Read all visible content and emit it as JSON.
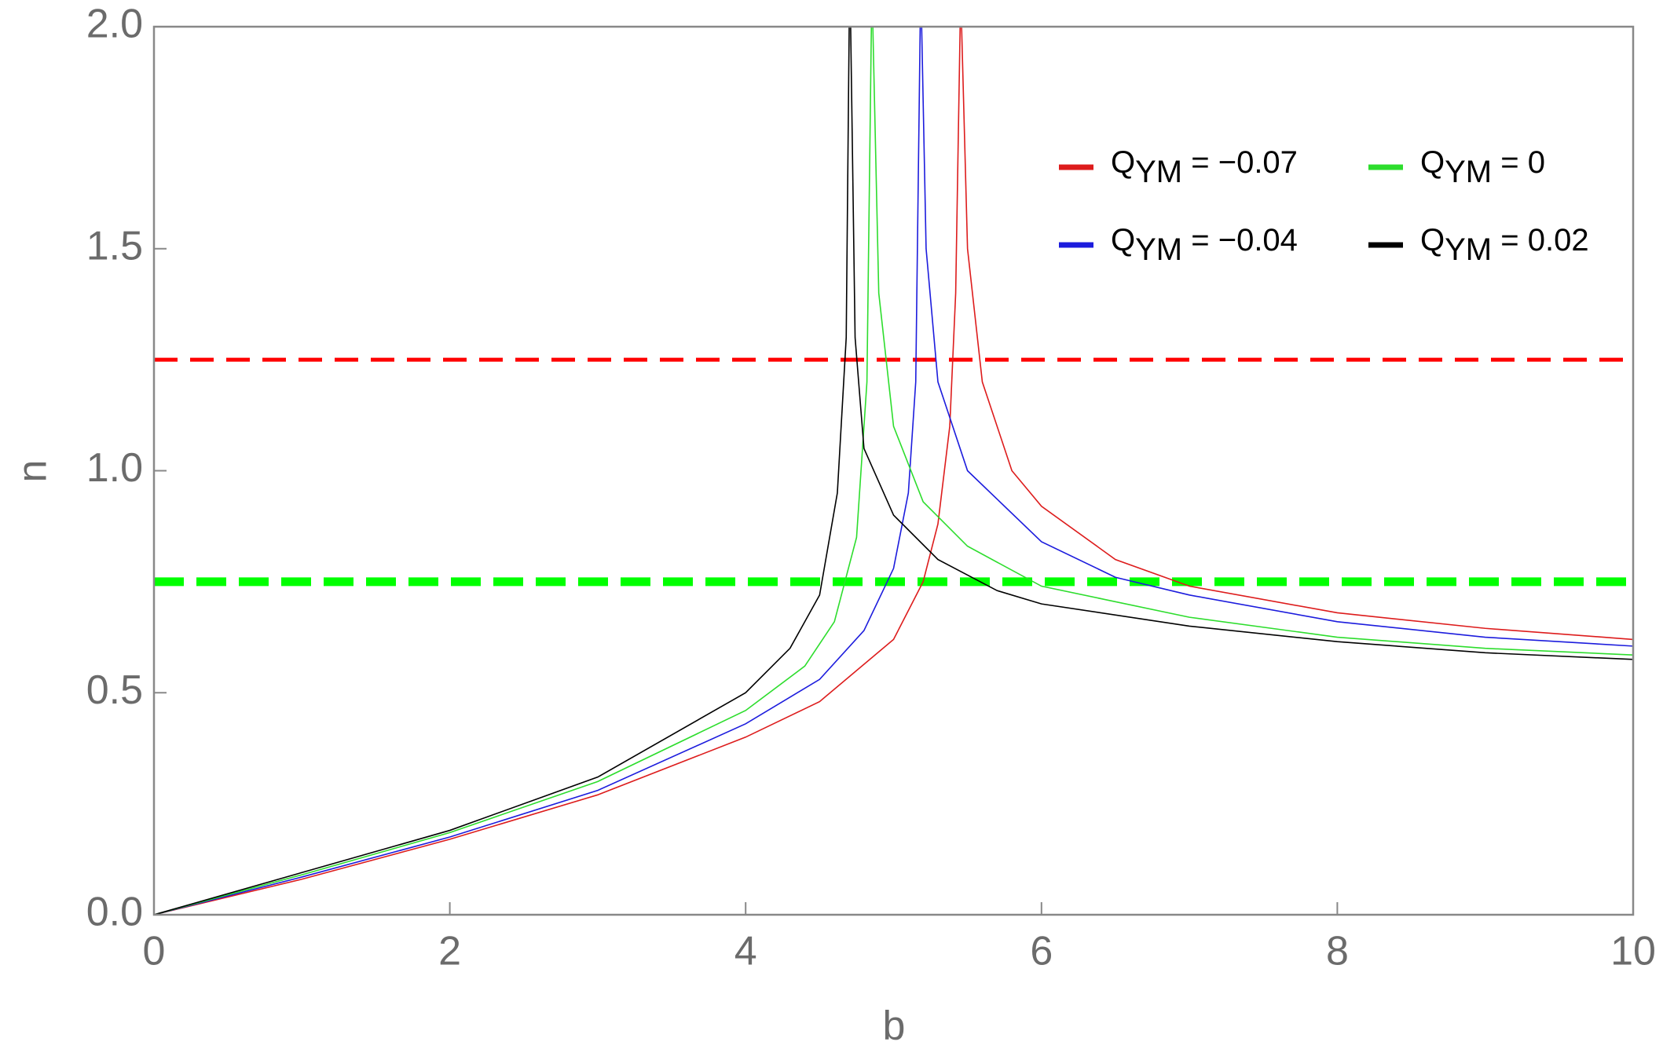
{
  "chart_data": {
    "type": "line",
    "xlabel": "b",
    "ylabel": "n",
    "xlim": [
      0,
      10
    ],
    "ylim": [
      0,
      2
    ],
    "xticks": [
      0,
      2,
      4,
      6,
      8,
      10
    ],
    "yticks": [
      {
        "value": 0,
        "label": "0.0"
      },
      0.5,
      {
        "value": 1,
        "label": "1.0"
      },
      1.5,
      {
        "value": 2,
        "label": "2.0"
      }
    ],
    "series": [
      {
        "name": "QYM = −0.07",
        "color": "#dd1c1c",
        "x": [
          0,
          1,
          2,
          3,
          4,
          4.5,
          5,
          5.2,
          5.3,
          5.38,
          5.42,
          5.45,
          null,
          5.46,
          5.5,
          5.6,
          5.8,
          6,
          6.5,
          7,
          8,
          9,
          10
        ],
        "values": [
          0,
          0.08,
          0.17,
          0.27,
          0.4,
          0.48,
          0.62,
          0.75,
          0.88,
          1.1,
          1.4,
          2,
          null,
          2,
          1.5,
          1.2,
          1,
          0.92,
          0.8,
          0.74,
          0.68,
          0.645,
          0.62
        ]
      },
      {
        "name": "QYM = −0.04",
        "color": "#1c1cdd",
        "x": [
          0,
          1,
          2,
          3,
          4,
          4.5,
          4.8,
          5,
          5.1,
          5.15,
          5.18,
          null,
          5.19,
          5.22,
          5.3,
          5.5,
          6,
          6.5,
          7,
          8,
          9,
          10
        ],
        "values": [
          0,
          0.085,
          0.175,
          0.28,
          0.43,
          0.53,
          0.64,
          0.78,
          0.95,
          1.2,
          2,
          null,
          2,
          1.5,
          1.2,
          1,
          0.84,
          0.76,
          0.72,
          0.66,
          0.625,
          0.605
        ]
      },
      {
        "name": "QYM = 0",
        "color": "#2ddd2d",
        "x": [
          0,
          1,
          2,
          3,
          4,
          4.4,
          4.6,
          4.75,
          4.82,
          4.85,
          null,
          4.86,
          4.9,
          5,
          5.2,
          5.5,
          6,
          7,
          8,
          9,
          10
        ],
        "values": [
          0,
          0.09,
          0.185,
          0.3,
          0.46,
          0.56,
          0.66,
          0.85,
          1.2,
          2,
          null,
          2,
          1.4,
          1.1,
          0.93,
          0.83,
          0.74,
          0.67,
          0.625,
          0.6,
          0.585
        ]
      },
      {
        "name": "QYM = 0.02",
        "color": "#000000",
        "x": [
          0,
          1,
          2,
          3,
          4,
          4.3,
          4.5,
          4.62,
          4.68,
          4.7,
          null,
          4.71,
          4.74,
          4.8,
          5,
          5.3,
          5.7,
          6,
          7,
          8,
          9,
          10
        ],
        "values": [
          0,
          0.095,
          0.19,
          0.31,
          0.5,
          0.6,
          0.72,
          0.95,
          1.3,
          2,
          null,
          2,
          1.3,
          1.05,
          0.9,
          0.8,
          0.73,
          0.7,
          0.65,
          0.615,
          0.59,
          0.575
        ]
      }
    ],
    "reference_lines": [
      {
        "value": 1.25,
        "color": "#ff0000"
      },
      {
        "value": 0.75,
        "color": "#00ff00"
      }
    ]
  }
}
